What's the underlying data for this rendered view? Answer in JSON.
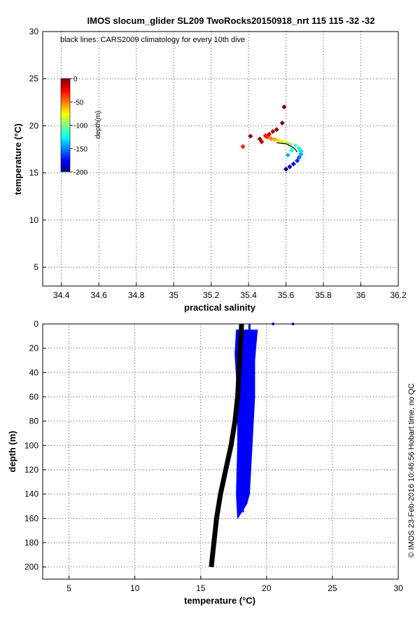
{
  "chart_data": [
    {
      "type": "scatter",
      "title": "IMOS slocum_glider SL209 TwoRocks20150918_nrt 115  115  -32  -32",
      "annotation": "black lines: CARS2009 climatology for every 10th dive",
      "xlabel": "practical salinity",
      "ylabel": "temperature (°C)",
      "xlim": [
        34.3,
        36.2
      ],
      "ylim": [
        3,
        30
      ],
      "xticks": [
        "34.4",
        "34.6",
        "34.8",
        "35",
        "35.2",
        "35.4",
        "35.6",
        "35.8",
        "36",
        "36.2"
      ],
      "yticks": [
        "5",
        "10",
        "15",
        "20",
        "25",
        "30"
      ],
      "grid": true,
      "colorbar": {
        "label": "depth(m)",
        "range": [
          -200,
          0
        ],
        "ticks": [
          "0",
          "-50",
          "-100",
          "-150",
          "-200"
        ],
        "colormap": "jet"
      },
      "series": [
        {
          "color_by": "depth",
          "points": [
            {
              "s": 35.6,
              "t": 15.4,
              "d": -200
            },
            {
              "s": 35.62,
              "t": 15.65,
              "d": -190
            },
            {
              "s": 35.64,
              "t": 15.95,
              "d": -178
            },
            {
              "s": 35.66,
              "t": 16.3,
              "d": -166
            },
            {
              "s": 35.67,
              "t": 16.65,
              "d": -154
            },
            {
              "s": 35.68,
              "t": 17.0,
              "d": -142
            },
            {
              "s": 35.68,
              "t": 17.3,
              "d": -132
            },
            {
              "s": 35.67,
              "t": 17.6,
              "d": -120
            },
            {
              "s": 35.65,
              "t": 17.9,
              "d": -108
            },
            {
              "s": 35.62,
              "t": 18.05,
              "d": -98
            },
            {
              "s": 35.6,
              "t": 18.2,
              "d": -88
            },
            {
              "s": 35.58,
              "t": 18.35,
              "d": -78
            },
            {
              "s": 35.56,
              "t": 18.45,
              "d": -68
            },
            {
              "s": 35.54,
              "t": 18.55,
              "d": -58
            },
            {
              "s": 35.52,
              "t": 18.65,
              "d": -48
            },
            {
              "s": 35.5,
              "t": 18.8,
              "d": -38
            },
            {
              "s": 35.49,
              "t": 18.95,
              "d": -28
            },
            {
              "s": 35.51,
              "t": 19.1,
              "d": -18
            },
            {
              "s": 35.53,
              "t": 19.4,
              "d": -8
            },
            {
              "s": 35.55,
              "t": 19.6,
              "d": -2
            },
            {
              "s": 35.47,
              "t": 18.3,
              "d": -12
            },
            {
              "s": 35.46,
              "t": 18.6,
              "d": -6
            },
            {
              "s": 35.58,
              "t": 20.3,
              "d": -1
            },
            {
              "s": 35.59,
              "t": 22.0,
              "d": 0
            },
            {
              "s": 35.37,
              "t": 17.8,
              "d": -30
            },
            {
              "s": 35.41,
              "t": 18.9,
              "d": -4
            },
            {
              "s": 35.63,
              "t": 17.4,
              "d": -125
            },
            {
              "s": 35.61,
              "t": 16.9,
              "d": -140
            }
          ]
        },
        {
          "name": "CARS2009 climatology",
          "color": "#000000",
          "points": [
            {
              "s": 35.55,
              "t": 18.2
            },
            {
              "s": 35.6,
              "t": 18.1
            },
            {
              "s": 35.63,
              "t": 17.8
            },
            {
              "s": 35.65,
              "t": 17.5
            },
            {
              "s": 35.66,
              "t": 17.2
            }
          ]
        }
      ]
    },
    {
      "type": "line",
      "xlabel": "temperature (°C)",
      "ylabel": "depth (m)",
      "xlim": [
        3,
        30
      ],
      "ylim": [
        210,
        0
      ],
      "xticks": [
        "5",
        "10",
        "15",
        "20",
        "25",
        "30"
      ],
      "yticks": [
        "0",
        "20",
        "40",
        "60",
        "80",
        "100",
        "120",
        "140",
        "160",
        "180",
        "200"
      ],
      "grid": true,
      "series": [
        {
          "name": "CARS2009 climatology",
          "color": "#000000",
          "points": [
            {
              "t": 18.1,
              "z": 0
            },
            {
              "t": 18.0,
              "z": 20
            },
            {
              "t": 17.9,
              "z": 40
            },
            {
              "t": 17.8,
              "z": 60
            },
            {
              "t": 17.6,
              "z": 80
            },
            {
              "t": 17.3,
              "z": 100
            },
            {
              "t": 16.9,
              "z": 120
            },
            {
              "t": 16.5,
              "z": 140
            },
            {
              "t": 16.2,
              "z": 160
            },
            {
              "t": 16.0,
              "z": 180
            },
            {
              "t": 15.8,
              "z": 200
            }
          ]
        },
        {
          "name": "glider",
          "color": "#0000ff",
          "points": [
            {
              "t": 18.7,
              "z": 0
            },
            {
              "t": 18.7,
              "z": 20
            },
            {
              "t": 18.6,
              "z": 40
            },
            {
              "t": 18.6,
              "z": 60
            },
            {
              "t": 18.5,
              "z": 80
            },
            {
              "t": 18.3,
              "z": 100
            },
            {
              "t": 18.1,
              "z": 120
            },
            {
              "t": 18.2,
              "z": 140
            },
            {
              "t": 18.2,
              "z": 155
            }
          ],
          "left_edge": [
            {
              "t": 17.7,
              "z": 5
            },
            {
              "t": 17.6,
              "z": 25
            },
            {
              "t": 17.8,
              "z": 60
            },
            {
              "t": 17.8,
              "z": 100
            },
            {
              "t": 17.7,
              "z": 140
            },
            {
              "t": 17.8,
              "z": 160
            }
          ],
          "right_edge": [
            {
              "t": 19.3,
              "z": 5
            },
            {
              "t": 19.1,
              "z": 30
            },
            {
              "t": 19.1,
              "z": 60
            },
            {
              "t": 18.9,
              "z": 100
            },
            {
              "t": 18.7,
              "z": 140
            },
            {
              "t": 18.5,
              "z": 148
            }
          ],
          "outliers": [
            {
              "t": 20.5,
              "z": 0
            },
            {
              "t": 22.0,
              "z": 0
            }
          ]
        }
      ]
    }
  ],
  "credit": "© IMOS 23-Feb-2016 10:46:56 Hobart time, no QC"
}
